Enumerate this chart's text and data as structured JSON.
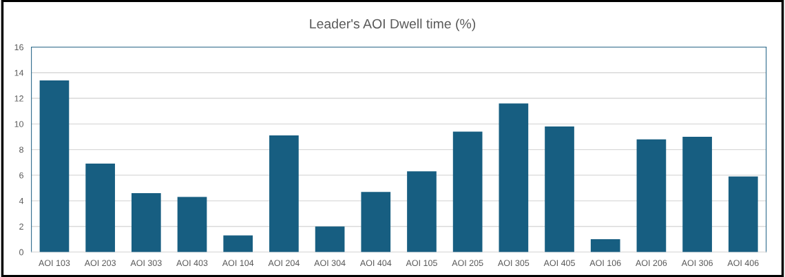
{
  "chart_data": {
    "type": "bar",
    "title": "Leader's AOI Dwell time (%)",
    "categories": [
      "AOI 103",
      "AOI 203",
      "AOI 303",
      "AOI 403",
      "AOI 104",
      "AOI 204",
      "AOI 304",
      "AOI 404",
      "AOI 105",
      "AOI 205",
      "AOI 305",
      "AOI 405",
      "AOI 106",
      "AOI 206",
      "AOI 306",
      "AOI 406"
    ],
    "values": [
      13.4,
      6.9,
      4.6,
      4.3,
      1.3,
      9.1,
      2.0,
      4.7,
      6.3,
      9.4,
      11.6,
      9.8,
      1.0,
      8.8,
      9.0,
      5.9
    ],
    "color": "#175e81",
    "ylim": [
      0,
      16
    ],
    "yticks": [
      0,
      2,
      4,
      6,
      8,
      10,
      12,
      14,
      16
    ],
    "grid": "y",
    "legend": false
  }
}
